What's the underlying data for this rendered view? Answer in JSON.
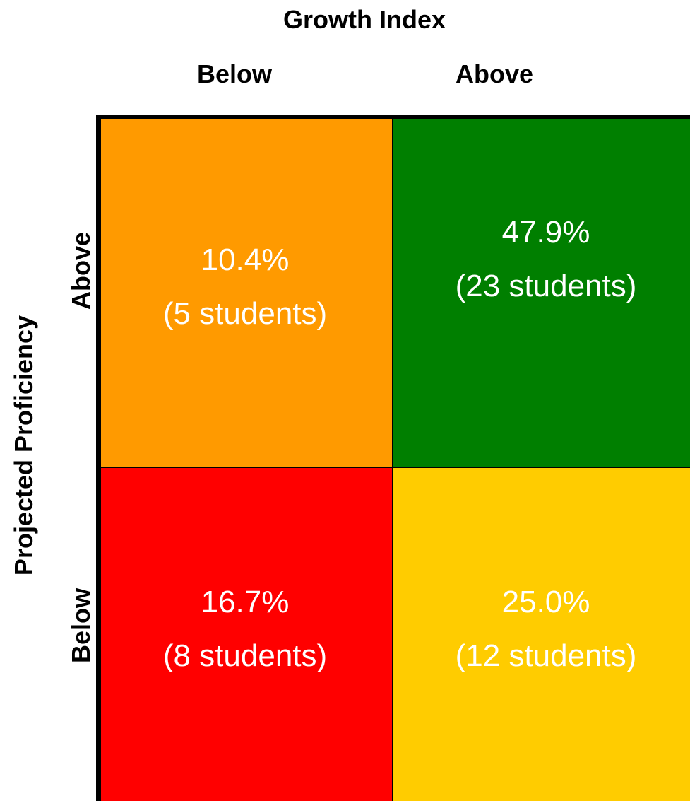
{
  "chart_data": {
    "type": "heatmap",
    "title": "",
    "xlabel": "Growth Index",
    "ylabel": "Projected Proficiency",
    "x_categories": [
      "Below",
      "Above"
    ],
    "y_categories": [
      "Above",
      "Below"
    ],
    "cells": [
      {
        "x": "Below",
        "y": "Above",
        "percent": 10.4,
        "students": 5,
        "percent_label": "10.4%",
        "count_label": "(5 students)",
        "color": "#FF9A00"
      },
      {
        "x": "Above",
        "y": "Above",
        "percent": 47.9,
        "students": 23,
        "percent_label": "47.9%",
        "count_label": "(23 students)",
        "color": "#007F00"
      },
      {
        "x": "Below",
        "y": "Below",
        "percent": 16.7,
        "students": 8,
        "percent_label": "16.7%",
        "count_label": "(8 students)",
        "color": "#FF0000"
      },
      {
        "x": "Above",
        "y": "Below",
        "percent": 25.0,
        "students": 12,
        "percent_label": "25.0%",
        "count_label": "(12 students)",
        "color": "#FFCC00"
      }
    ]
  },
  "colors": {
    "border": "#000000",
    "cell_text": "#ffffff",
    "label_text": "#000000"
  }
}
